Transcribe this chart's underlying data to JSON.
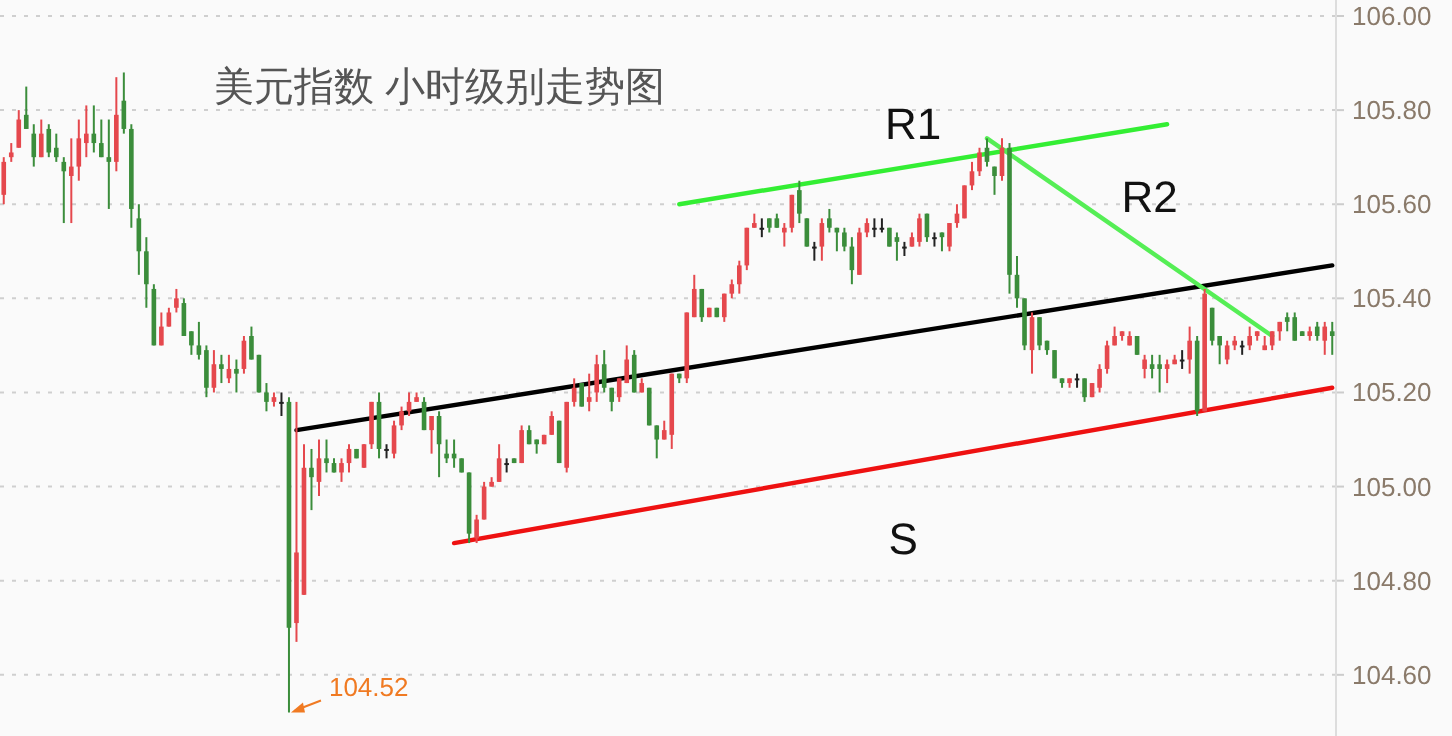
{
  "chart_data": {
    "type": "candlestick",
    "title": "美元指数 小时级别走势图",
    "categories": [
      null,
      null,
      null,
      null,
      null,
      null,
      null,
      null,
      null,
      null,
      null,
      null,
      null,
      null,
      null,
      null,
      null,
      null,
      null,
      null,
      null,
      null,
      null,
      null,
      null,
      null,
      null,
      null,
      null,
      null,
      null,
      null,
      null,
      null,
      null,
      null,
      null,
      null,
      null,
      null,
      null,
      null,
      null,
      null,
      null,
      null,
      null,
      null,
      null,
      null,
      null,
      null,
      null,
      null,
      null,
      null,
      null,
      null,
      null,
      null,
      null,
      null,
      null,
      null,
      null,
      null,
      null,
      null,
      null,
      null,
      null,
      null,
      null,
      null,
      null,
      null,
      null,
      null,
      null,
      null,
      null,
      null,
      null,
      null,
      null,
      null,
      null,
      null,
      null,
      null,
      null,
      null,
      null,
      null,
      null,
      null,
      null,
      null,
      null,
      null,
      null,
      null,
      null,
      null,
      null,
      null,
      null,
      null,
      null,
      null,
      null,
      null,
      null,
      null,
      null,
      null,
      null,
      null,
      null,
      null,
      null,
      null,
      null,
      null,
      null,
      null,
      null,
      null,
      null,
      null,
      null,
      null,
      null,
      null,
      null,
      null,
      null,
      null,
      null,
      null,
      null,
      null,
      null,
      null,
      null,
      null,
      null,
      null,
      null,
      null,
      null,
      null,
      null,
      null,
      null,
      null,
      null,
      null,
      null,
      null,
      null,
      null,
      null,
      null,
      null,
      null,
      null,
      null,
      null,
      null,
      null,
      null,
      null,
      null,
      null,
      null,
      null,
      null
    ],
    "ohlc": [
      [
        105.62,
        105.7,
        105.6,
        105.69
      ],
      [
        105.7,
        105.73,
        105.69,
        105.71
      ],
      [
        105.72,
        105.8,
        105.72,
        105.78
      ],
      [
        105.79,
        105.85,
        105.76,
        105.76
      ],
      [
        105.75,
        105.77,
        105.68,
        105.7
      ],
      [
        105.7,
        105.78,
        105.7,
        105.75
      ],
      [
        105.76,
        105.77,
        105.7,
        105.71
      ],
      [
        105.72,
        105.75,
        105.69,
        105.7
      ],
      [
        105.69,
        105.7,
        105.56,
        105.67
      ],
      [
        105.66,
        105.74,
        105.56,
        105.68
      ],
      [
        105.68,
        105.78,
        105.65,
        105.74
      ],
      [
        105.73,
        105.81,
        105.7,
        105.75
      ],
      [
        105.75,
        105.81,
        105.71,
        105.73
      ],
      [
        105.73,
        105.78,
        105.7,
        105.7
      ],
      [
        105.7,
        105.78,
        105.59,
        105.69
      ],
      [
        105.69,
        105.87,
        105.67,
        105.79
      ],
      [
        105.82,
        105.88,
        105.75,
        105.76
      ],
      [
        105.76,
        105.77,
        105.55,
        105.59
      ],
      [
        105.57,
        105.6,
        105.45,
        105.5
      ],
      [
        105.5,
        105.53,
        105.38,
        105.43
      ],
      [
        105.42,
        105.43,
        105.3,
        105.3
      ],
      [
        105.3,
        105.37,
        105.3,
        105.34
      ],
      [
        105.34,
        105.38,
        105.34,
        105.37
      ],
      [
        105.38,
        105.42,
        105.37,
        105.4
      ],
      [
        105.39,
        105.4,
        105.32,
        105.32
      ],
      [
        105.33,
        105.33,
        105.28,
        105.3
      ],
      [
        105.3,
        105.35,
        105.27,
        105.28
      ],
      [
        105.29,
        105.3,
        105.19,
        105.21
      ],
      [
        105.21,
        105.29,
        105.2,
        105.26
      ],
      [
        105.26,
        105.28,
        105.22,
        105.25
      ],
      [
        105.23,
        105.28,
        105.22,
        105.25
      ],
      [
        105.25,
        105.27,
        105.2,
        105.24
      ],
      [
        105.25,
        105.32,
        105.24,
        105.31
      ],
      [
        105.32,
        105.34,
        105.27,
        105.27
      ],
      [
        105.28,
        105.28,
        105.2,
        105.2
      ],
      [
        105.2,
        105.22,
        105.16,
        105.18
      ],
      [
        105.18,
        105.2,
        105.17,
        105.19
      ],
      [
        105.18,
        105.2,
        105.15,
        105.18
      ],
      [
        105.18,
        105.19,
        104.52,
        104.7
      ],
      [
        104.71,
        105.18,
        104.67,
        104.86
      ],
      [
        104.77,
        105.09,
        104.77,
        105.04
      ],
      [
        105.04,
        105.08,
        104.95,
        105.02
      ],
      [
        105.01,
        105.1,
        104.98,
        105.06
      ],
      [
        105.06,
        105.1,
        105.03,
        105.05
      ],
      [
        105.05,
        105.06,
        105.03,
        105.03
      ],
      [
        105.03,
        105.06,
        105.01,
        105.05
      ],
      [
        105.05,
        105.09,
        105.03,
        105.08
      ],
      [
        105.08,
        105.08,
        105.06,
        105.06
      ],
      [
        105.04,
        105.09,
        105.04,
        105.09
      ],
      [
        105.09,
        105.18,
        105.08,
        105.18
      ],
      [
        105.18,
        105.2,
        105.06,
        105.08
      ],
      [
        105.08,
        105.09,
        105.06,
        105.08
      ],
      [
        105.07,
        105.14,
        105.06,
        105.13
      ],
      [
        105.13,
        105.17,
        105.12,
        105.16
      ],
      [
        105.16,
        105.2,
        105.15,
        105.18
      ],
      [
        105.18,
        105.2,
        105.18,
        105.19
      ],
      [
        105.18,
        105.19,
        105.12,
        105.12
      ],
      [
        105.12,
        105.15,
        105.07,
        105.15
      ],
      [
        105.15,
        105.16,
        105.02,
        105.09
      ],
      [
        105.07,
        105.1,
        105.05,
        105.06
      ],
      [
        105.07,
        105.1,
        105.04,
        105.06
      ],
      [
        105.06,
        105.06,
        105.03,
        105.03
      ],
      [
        105.03,
        105.03,
        104.88,
        104.9
      ],
      [
        104.89,
        104.94,
        104.88,
        104.93
      ],
      [
        104.93,
        105.01,
        104.93,
        105.0
      ],
      [
        105.0,
        105.02,
        105.0,
        105.01
      ],
      [
        105.01,
        105.09,
        105.01,
        105.06
      ],
      [
        105.05,
        105.06,
        105.03,
        105.05
      ],
      [
        105.06,
        105.06,
        105.05,
        105.05
      ],
      [
        105.05,
        105.13,
        105.05,
        105.12
      ],
      [
        105.12,
        105.13,
        105.09,
        105.09
      ],
      [
        105.1,
        105.1,
        105.07,
        105.09
      ],
      [
        105.09,
        105.11,
        105.09,
        105.11
      ],
      [
        105.11,
        105.16,
        105.11,
        105.15
      ],
      [
        105.14,
        105.14,
        105.05,
        105.05
      ],
      [
        105.04,
        105.18,
        105.03,
        105.18
      ],
      [
        105.18,
        105.23,
        105.17,
        105.21
      ],
      [
        105.22,
        105.22,
        105.17,
        105.17
      ],
      [
        105.18,
        105.24,
        105.16,
        105.19
      ],
      [
        105.2,
        105.28,
        105.18,
        105.26
      ],
      [
        105.26,
        105.29,
        105.2,
        105.21
      ],
      [
        105.21,
        105.21,
        105.16,
        105.18
      ],
      [
        105.19,
        105.23,
        105.18,
        105.23
      ],
      [
        105.22,
        105.3,
        105.22,
        105.27
      ],
      [
        105.28,
        105.29,
        105.2,
        105.2
      ],
      [
        105.2,
        105.23,
        105.2,
        105.22
      ],
      [
        105.21,
        105.21,
        105.13,
        105.13
      ],
      [
        105.13,
        105.13,
        105.06,
        105.1
      ],
      [
        105.1,
        105.14,
        105.1,
        105.12
      ],
      [
        105.11,
        105.24,
        105.08,
        105.24
      ],
      [
        105.24,
        105.24,
        105.22,
        105.23
      ],
      [
        105.23,
        105.37,
        105.22,
        105.37
      ],
      [
        105.36,
        105.45,
        105.36,
        105.42
      ],
      [
        105.42,
        105.42,
        105.35,
        105.36
      ],
      [
        105.36,
        105.38,
        105.36,
        105.38
      ],
      [
        105.38,
        105.38,
        105.36,
        105.36
      ],
      [
        105.36,
        105.41,
        105.35,
        105.41
      ],
      [
        105.41,
        105.44,
        105.4,
        105.43
      ],
      [
        105.43,
        105.48,
        105.41,
        105.47
      ],
      [
        105.47,
        105.55,
        105.46,
        105.55
      ],
      [
        105.55,
        105.58,
        105.55,
        105.56
      ],
      [
        105.55,
        105.57,
        105.53,
        105.55
      ],
      [
        105.57,
        105.57,
        105.54,
        105.55
      ],
      [
        105.57,
        105.58,
        105.55,
        105.55
      ],
      [
        105.54,
        105.56,
        105.51,
        105.55
      ],
      [
        105.55,
        105.62,
        105.54,
        105.62
      ],
      [
        105.63,
        105.65,
        105.56,
        105.58
      ],
      [
        105.57,
        105.57,
        105.51,
        105.51
      ],
      [
        105.51,
        105.52,
        105.48,
        105.51
      ],
      [
        105.51,
        105.57,
        105.48,
        105.56
      ],
      [
        105.57,
        105.59,
        105.54,
        105.55
      ],
      [
        105.55,
        105.55,
        105.5,
        105.54
      ],
      [
        105.54,
        105.55,
        105.5,
        105.51
      ],
      [
        105.51,
        105.53,
        105.43,
        105.46
      ],
      [
        105.45,
        105.55,
        105.45,
        105.54
      ],
      [
        105.54,
        105.57,
        105.53,
        105.56
      ],
      [
        105.55,
        105.57,
        105.53,
        105.55
      ],
      [
        105.55,
        105.57,
        105.54,
        105.55
      ],
      [
        105.55,
        105.55,
        105.51,
        105.51
      ],
      [
        105.53,
        105.54,
        105.48,
        105.52
      ],
      [
        105.51,
        105.52,
        105.49,
        105.51
      ],
      [
        105.51,
        105.54,
        105.51,
        105.53
      ],
      [
        105.52,
        105.58,
        105.51,
        105.57
      ],
      [
        105.58,
        105.58,
        105.52,
        105.53
      ],
      [
        105.53,
        105.54,
        105.51,
        105.53
      ],
      [
        105.54,
        105.54,
        105.5,
        105.53
      ],
      [
        105.51,
        105.56,
        105.5,
        105.56
      ],
      [
        105.56,
        105.6,
        105.55,
        105.58
      ],
      [
        105.57,
        105.64,
        105.57,
        105.64
      ],
      [
        105.64,
        105.69,
        105.63,
        105.67
      ],
      [
        105.67,
        105.72,
        105.66,
        105.71
      ],
      [
        105.72,
        105.74,
        105.68,
        105.69
      ],
      [
        105.68,
        105.68,
        105.62,
        105.66
      ],
      [
        105.66,
        105.74,
        105.65,
        105.72
      ],
      [
        105.72,
        105.73,
        105.41,
        105.45
      ],
      [
        105.45,
        105.49,
        105.38,
        105.4
      ],
      [
        105.4,
        105.4,
        105.29,
        105.3
      ],
      [
        105.29,
        105.37,
        105.24,
        105.36
      ],
      [
        105.36,
        105.36,
        105.29,
        105.3
      ],
      [
        105.31,
        105.31,
        105.28,
        105.29
      ],
      [
        105.29,
        105.29,
        105.23,
        105.23
      ],
      [
        105.23,
        105.23,
        105.21,
        105.22
      ],
      [
        105.22,
        105.23,
        105.21,
        105.23
      ],
      [
        105.23,
        105.24,
        105.21,
        105.23
      ],
      [
        105.23,
        105.23,
        105.18,
        105.19
      ],
      [
        105.19,
        105.22,
        105.19,
        105.22
      ],
      [
        105.21,
        105.26,
        105.2,
        105.25
      ],
      [
        105.25,
        105.31,
        105.24,
        105.3
      ],
      [
        105.3,
        105.34,
        105.3,
        105.32
      ],
      [
        105.32,
        105.33,
        105.31,
        105.33
      ],
      [
        105.3,
        105.33,
        105.3,
        105.32
      ],
      [
        105.32,
        105.32,
        105.28,
        105.28
      ],
      [
        105.25,
        105.28,
        105.23,
        105.27
      ],
      [
        105.26,
        105.28,
        105.23,
        105.25
      ],
      [
        105.26,
        105.28,
        105.2,
        105.25
      ],
      [
        105.25,
        105.27,
        105.22,
        105.26
      ],
      [
        105.26,
        105.28,
        105.26,
        105.27
      ],
      [
        105.27,
        105.29,
        105.25,
        105.27
      ],
      [
        105.27,
        105.34,
        105.24,
        105.31
      ],
      [
        105.31,
        105.32,
        105.15,
        105.16
      ],
      [
        105.16,
        105.42,
        105.16,
        105.41
      ],
      [
        105.38,
        105.38,
        105.3,
        105.31
      ],
      [
        105.32,
        105.32,
        105.26,
        105.3
      ],
      [
        105.27,
        105.31,
        105.26,
        105.3
      ],
      [
        105.3,
        105.32,
        105.29,
        105.31
      ],
      [
        105.3,
        105.31,
        105.28,
        105.3
      ],
      [
        105.3,
        105.34,
        105.29,
        105.32
      ],
      [
        105.32,
        105.33,
        105.31,
        105.33
      ],
      [
        105.29,
        105.32,
        105.29,
        105.3
      ],
      [
        105.3,
        105.33,
        105.29,
        105.33
      ],
      [
        105.33,
        105.35,
        105.31,
        105.35
      ],
      [
        105.36,
        105.37,
        105.33,
        105.35
      ],
      [
        105.36,
        105.37,
        105.31,
        105.31
      ],
      [
        105.33,
        105.33,
        105.32,
        105.32
      ],
      [
        105.32,
        105.34,
        105.31,
        105.33
      ],
      [
        105.34,
        105.35,
        105.31,
        105.32
      ],
      [
        105.31,
        105.35,
        105.28,
        105.34
      ],
      [
        105.33,
        105.35,
        105.28,
        105.32
      ]
    ],
    "colors": [
      "#e5484d",
      "#e5484d",
      "#e5484d",
      "#3b8d3b",
      "#3b8d3b",
      "#e5484d",
      "#3b8d3b",
      "#3b8d3b",
      "#3b8d3b",
      "#e5484d",
      "#e5484d",
      "#e5484d",
      "#3b8d3b",
      "#3b8d3b",
      "#3b8d3b",
      "#e5484d",
      "#3b8d3b",
      "#3b8d3b",
      "#3b8d3b",
      "#3b8d3b",
      "#3b8d3b",
      "#e5484d",
      "#e5484d",
      "#e5484d",
      "#3b8d3b",
      "#3b8d3b",
      "#3b8d3b",
      "#3b8d3b",
      "#e5484d",
      "#3b8d3b",
      "#e5484d",
      "#3b8d3b",
      "#e5484d",
      "#3b8d3b",
      "#3b8d3b",
      "#3b8d3b",
      "#e5484d",
      "#222222",
      "#3b8d3b",
      "#e5484d",
      "#e5484d",
      "#3b8d3b",
      "#e5484d",
      "#3b8d3b",
      "#3b8d3b",
      "#e5484d",
      "#e5484d",
      "#3b8d3b",
      "#e5484d",
      "#e5484d",
      "#3b8d3b",
      "#222222",
      "#e5484d",
      "#e5484d",
      "#e5484d",
      "#e5484d",
      "#3b8d3b",
      "#e5484d",
      "#3b8d3b",
      "#3b8d3b",
      "#3b8d3b",
      "#3b8d3b",
      "#3b8d3b",
      "#e5484d",
      "#e5484d",
      "#e5484d",
      "#e5484d",
      "#222222",
      "#3b8d3b",
      "#e5484d",
      "#3b8d3b",
      "#3b8d3b",
      "#e5484d",
      "#e5484d",
      "#3b8d3b",
      "#e5484d",
      "#e5484d",
      "#3b8d3b",
      "#e5484d",
      "#e5484d",
      "#3b8d3b",
      "#3b8d3b",
      "#e5484d",
      "#e5484d",
      "#3b8d3b",
      "#e5484d",
      "#3b8d3b",
      "#3b8d3b",
      "#e5484d",
      "#e5484d",
      "#3b8d3b",
      "#e5484d",
      "#e5484d",
      "#3b8d3b",
      "#e5484d",
      "#3b8d3b",
      "#e5484d",
      "#e5484d",
      "#e5484d",
      "#e5484d",
      "#e5484d",
      "#222222",
      "#3b8d3b",
      "#3b8d3b",
      "#e5484d",
      "#e5484d",
      "#3b8d3b",
      "#3b8d3b",
      "#222222",
      "#e5484d",
      "#3b8d3b",
      "#3b8d3b",
      "#3b8d3b",
      "#3b8d3b",
      "#e5484d",
      "#e5484d",
      "#222222",
      "#222222",
      "#3b8d3b",
      "#3b8d3b",
      "#222222",
      "#e5484d",
      "#e5484d",
      "#3b8d3b",
      "#222222",
      "#3b8d3b",
      "#e5484d",
      "#e5484d",
      "#e5484d",
      "#e5484d",
      "#e5484d",
      "#3b8d3b",
      "#3b8d3b",
      "#e5484d",
      "#3b8d3b",
      "#3b8d3b",
      "#3b8d3b",
      "#e5484d",
      "#3b8d3b",
      "#3b8d3b",
      "#3b8d3b",
      "#3b8d3b",
      "#e5484d",
      "#222222",
      "#3b8d3b",
      "#e5484d",
      "#e5484d",
      "#e5484d",
      "#e5484d",
      "#e5484d",
      "#e5484d",
      "#3b8d3b",
      "#e5484d",
      "#3b8d3b",
      "#3b8d3b",
      "#e5484d",
      "#e5484d",
      "#222222",
      "#e5484d",
      "#3b8d3b",
      "#e5484d",
      "#3b8d3b",
      "#3b8d3b",
      "#e5484d",
      "#e5484d",
      "#222222",
      "#e5484d",
      "#e5484d",
      "#e5484d",
      "#e5484d",
      "#e5484d",
      "#3b8d3b",
      "#3b8d3b",
      "#3b8d3b",
      "#e5484d",
      "#3b8d3b",
      "#e5484d",
      "#3b8d3b"
    ],
    "series": [
      {
        "type": "line",
        "color": "#33ee33",
        "values": [
          null,
          null,
          null,
          null,
          null,
          null,
          null,
          null,
          null,
          null,
          null,
          null,
          null,
          null,
          null,
          null,
          null,
          null,
          null,
          null,
          null,
          null,
          null,
          null,
          null,
          null,
          null,
          null,
          null,
          null,
          null,
          null,
          null,
          null,
          null,
          null,
          null,
          null,
          null,
          null,
          null,
          null,
          null,
          null,
          null,
          null,
          null,
          null,
          null,
          null,
          null,
          null,
          null,
          null,
          null,
          null,
          null,
          null,
          null,
          null,
          null,
          null,
          null,
          null,
          null,
          null,
          null,
          null,
          null,
          null,
          null,
          null,
          null,
          null,
          null,
          null,
          null,
          null,
          null,
          null,
          null,
          null,
          null,
          null,
          null,
          null,
          null,
          null,
          null,
          null,
          105.6,
          null,
          null,
          null,
          null,
          null,
          null,
          null,
          null,
          null,
          null,
          null,
          null,
          null,
          null,
          null,
          null,
          null,
          null,
          null,
          null,
          null,
          null,
          null,
          null,
          null,
          null,
          null,
          null,
          null,
          null,
          null,
          null,
          null,
          null,
          null,
          null,
          null,
          null,
          null,
          null,
          null,
          null,
          null,
          null,
          null,
          null,
          null,
          null,
          null,
          null,
          null,
          null,
          null,
          null,
          null,
          null,
          null,
          null,
          null,
          null,
          null,
          null,
          null,
          null,
          105.77,
          null,
          null,
          null,
          null,
          null,
          null,
          null,
          null,
          null,
          null,
          null,
          null,
          null,
          null,
          null,
          null,
          null,
          null,
          null,
          null,
          null,
          null
        ]
      },
      {
        "type": "line",
        "color": "#000000",
        "values": [
          null,
          null,
          null,
          null,
          null,
          null,
          null,
          null,
          null,
          null,
          null,
          null,
          null,
          null,
          null,
          null,
          null,
          null,
          null,
          null,
          null,
          null,
          null,
          null,
          null,
          null,
          null,
          null,
          null,
          null,
          null,
          null,
          null,
          null,
          null,
          null,
          null,
          null,
          null,
          105.12,
          null,
          null,
          null,
          null,
          null,
          null,
          null,
          null,
          null,
          null,
          null,
          null,
          null,
          null,
          null,
          null,
          null,
          null,
          null,
          null,
          null,
          null,
          null,
          null,
          null,
          null,
          null,
          null,
          null,
          null,
          null,
          null,
          null,
          null,
          null,
          null,
          null,
          null,
          null,
          null,
          null,
          null,
          null,
          null,
          null,
          null,
          null,
          null,
          null,
          null,
          null,
          null,
          null,
          null,
          null,
          null,
          null,
          null,
          null,
          null,
          null,
          null,
          null,
          null,
          null,
          null,
          null,
          null,
          null,
          null,
          null,
          null,
          null,
          null,
          null,
          null,
          null,
          null,
          null,
          null,
          null,
          null,
          null,
          null,
          null,
          null,
          null,
          null,
          null,
          null,
          null,
          null,
          null,
          null,
          null,
          null,
          null,
          null,
          null,
          null,
          null,
          null,
          null,
          null,
          null,
          null,
          null,
          null,
          null,
          null,
          null,
          null,
          null,
          null,
          null,
          null,
          null,
          null,
          null,
          null,
          null,
          null,
          null,
          null,
          null,
          null,
          null,
          null,
          null,
          null,
          null,
          null,
          null,
          null,
          null,
          null,
          null,
          105.47
        ]
      },
      {
        "type": "line",
        "color": "#ee1111",
        "values": [
          null,
          null,
          null,
          null,
          null,
          null,
          null,
          null,
          null,
          null,
          null,
          null,
          null,
          null,
          null,
          null,
          null,
          null,
          null,
          null,
          null,
          null,
          null,
          null,
          null,
          null,
          null,
          null,
          null,
          null,
          null,
          null,
          null,
          null,
          null,
          null,
          null,
          null,
          null,
          null,
          null,
          null,
          null,
          null,
          null,
          null,
          null,
          null,
          null,
          null,
          null,
          null,
          null,
          null,
          null,
          null,
          null,
          null,
          null,
          null,
          104.88,
          null,
          null,
          null,
          null,
          null,
          null,
          null,
          null,
          null,
          null,
          null,
          null,
          null,
          null,
          null,
          null,
          null,
          null,
          null,
          null,
          null,
          null,
          null,
          null,
          null,
          null,
          null,
          null,
          null,
          null,
          null,
          null,
          null,
          null,
          null,
          null,
          null,
          null,
          null,
          null,
          null,
          null,
          null,
          null,
          null,
          null,
          null,
          null,
          null,
          null,
          null,
          null,
          null,
          null,
          null,
          null,
          null,
          null,
          null,
          null,
          null,
          null,
          null,
          null,
          null,
          null,
          null,
          null,
          null,
          null,
          null,
          null,
          null,
          null,
          null,
          null,
          null,
          null,
          null,
          null,
          null,
          null,
          null,
          null,
          null,
          null,
          null,
          null,
          null,
          null,
          null,
          null,
          null,
          null,
          null,
          null,
          null,
          null,
          null,
          null,
          null,
          null,
          null,
          null,
          null,
          null,
          null,
          null,
          null,
          null,
          null,
          null,
          null,
          null,
          null,
          null,
          105.21
        ]
      },
      {
        "type": "line",
        "color": "#55ee55",
        "values": [
          null,
          null,
          null,
          null,
          null,
          null,
          null,
          null,
          null,
          null,
          null,
          null,
          null,
          null,
          null,
          null,
          null,
          null,
          null,
          null,
          null,
          null,
          null,
          null,
          null,
          null,
          null,
          null,
          null,
          null,
          null,
          null,
          null,
          null,
          null,
          null,
          null,
          null,
          null,
          null,
          null,
          null,
          null,
          null,
          null,
          null,
          null,
          null,
          null,
          null,
          null,
          null,
          null,
          null,
          null,
          null,
          null,
          null,
          null,
          null,
          null,
          null,
          null,
          null,
          null,
          null,
          null,
          null,
          null,
          null,
          null,
          null,
          null,
          null,
          null,
          null,
          null,
          null,
          null,
          null,
          null,
          null,
          null,
          null,
          null,
          null,
          null,
          null,
          null,
          null,
          null,
          null,
          null,
          null,
          null,
          null,
          null,
          null,
          null,
          null,
          null,
          null,
          null,
          null,
          null,
          null,
          null,
          null,
          null,
          null,
          null,
          null,
          null,
          null,
          null,
          null,
          null,
          null,
          null,
          null,
          null,
          null,
          null,
          null,
          null,
          null,
          null,
          null,
          null,
          null,
          null,
          105.74,
          null,
          null,
          null,
          null,
          null,
          null,
          null,
          null,
          null,
          null,
          null,
          null,
          null,
          null,
          null,
          null,
          null,
          null,
          null,
          null,
          null,
          null,
          null,
          null,
          null,
          null,
          null,
          null,
          null,
          null,
          null,
          null,
          null,
          null,
          null,
          null,
          null,
          105.32,
          null,
          null,
          null,
          null,
          null,
          null,
          null,
          null
        ]
      }
    ],
    "ylim": [
      104.47,
      106.0
    ],
    "yticks": [
      {
        "value": 104.6,
        "label": "104.60"
      },
      {
        "value": 104.8,
        "label": "104.80"
      },
      {
        "value": 105.0,
        "label": "105.00"
      },
      {
        "value": 105.2,
        "label": "105.20"
      },
      {
        "value": 105.4,
        "label": "105.40"
      },
      {
        "value": 105.6,
        "label": "105.60"
      },
      {
        "value": 105.8,
        "label": "105.80"
      },
      {
        "value": 106.0,
        "label": "106.00"
      }
    ],
    "grid": "y",
    "tick_labels": "y",
    "annotations": [
      "R1",
      "R2",
      "S",
      "104.52"
    ]
  }
}
